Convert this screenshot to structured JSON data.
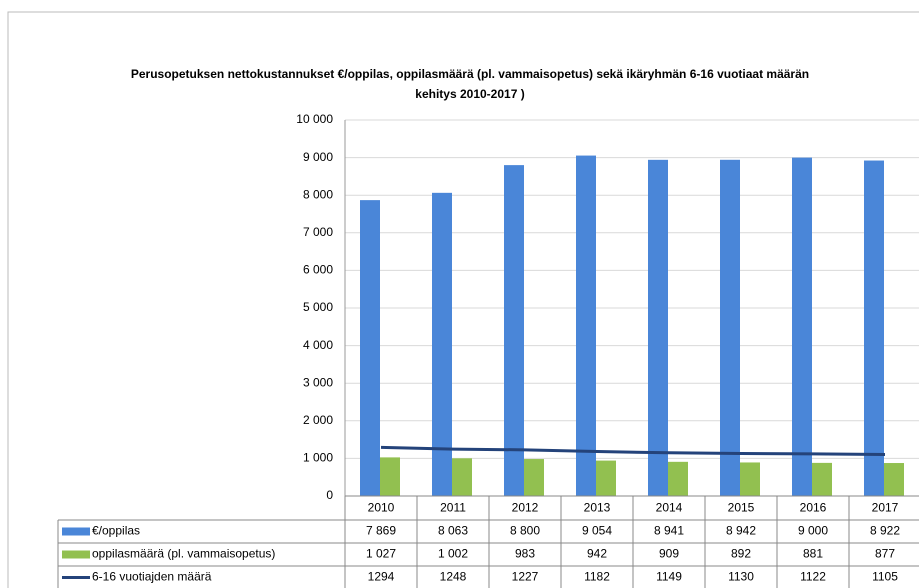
{
  "chart_data": {
    "type": "bar",
    "title": "Perusopetuksen nettokustannukset €/oppilas, oppilasmäärä (pl. vammaisopetus) sekä ikäryhmän 6-16 vuotiaat määrän kehitys 2010-2017 )",
    "categories": [
      "2010",
      "2011",
      "2012",
      "2013",
      "2014",
      "2015",
      "2016",
      "2017"
    ],
    "series": [
      {
        "name": "€/oppilas",
        "color": "#4a86d8",
        "type": "bar",
        "values": [
          7869,
          8063,
          8800,
          9054,
          8941,
          8942,
          9000,
          8922
        ],
        "value_labels": [
          "7 869",
          "8 063",
          "8 800",
          "9 054",
          "8 941",
          "8 942",
          "9 000",
          "8 922"
        ]
      },
      {
        "name": "oppilasmäärä (pl. vammaisopetus)",
        "color": "#92c050",
        "type": "bar",
        "values": [
          1027,
          1002,
          983,
          942,
          909,
          892,
          881,
          877
        ],
        "value_labels": [
          "1 027",
          "1 002",
          "983",
          "942",
          "909",
          "892",
          "881",
          "877"
        ]
      },
      {
        "name": "6-16 vuotiajden määrä",
        "color": "#24437a",
        "type": "line",
        "values": [
          1294,
          1248,
          1227,
          1182,
          1149,
          1130,
          1122,
          1105
        ]
      }
    ],
    "ylim": [
      0,
      10000
    ],
    "yticks": [
      0,
      {
        "value": 1000,
        "label": "1 000"
      },
      {
        "value": 2000,
        "label": "2 000"
      },
      {
        "value": 3000,
        "label": "3 000"
      },
      {
        "value": 4000,
        "label": "4 000"
      },
      {
        "value": 5000,
        "label": "5 000"
      },
      {
        "value": 6000,
        "label": "6 000"
      },
      {
        "value": 7000,
        "label": "7 000"
      },
      {
        "value": 8000,
        "label": "8 000"
      },
      {
        "value": 9000,
        "label": "9 000"
      },
      {
        "value": 10000,
        "label": "10 000"
      }
    ],
    "grid": true
  }
}
